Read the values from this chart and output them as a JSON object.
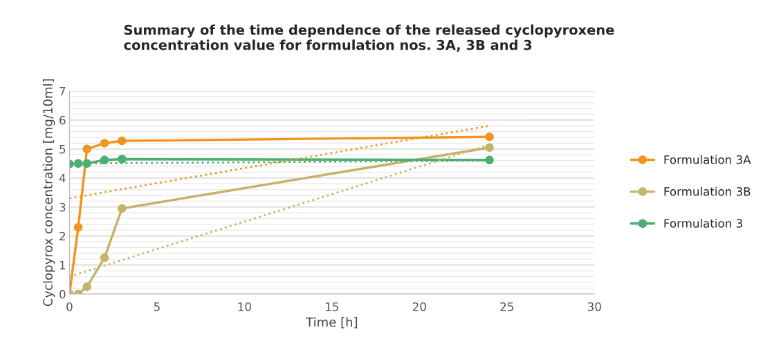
{
  "chart_data": {
    "type": "line",
    "title": "Summary of the time dependence of the released cyclopyroxene\nconcentration value for formulation nos. 3A, 3B and 3",
    "xlabel": "Time [h]",
    "ylabel": "Cyclopyrox concentration [mg/10ml]",
    "xlim": [
      0,
      30
    ],
    "xticks": [
      0,
      5,
      10,
      15,
      20,
      25,
      30
    ],
    "ylim": [
      0,
      7
    ],
    "yticks": [
      0,
      {
        "value": 0.2,
        "label": null
      },
      {
        "value": 0.4,
        "label": null
      },
      {
        "value": 0.6,
        "label": null
      },
      {
        "value": 0.8,
        "label": null
      },
      1,
      {
        "value": 1.2,
        "label": null
      },
      {
        "value": 1.4,
        "label": null
      },
      {
        "value": 1.6,
        "label": null
      },
      {
        "value": 1.8,
        "label": null
      },
      2,
      {
        "value": 2.2,
        "label": null
      },
      {
        "value": 2.4,
        "label": null
      },
      {
        "value": 2.6,
        "label": null
      },
      {
        "value": 2.8,
        "label": null
      },
      3,
      {
        "value": 3.2,
        "label": null
      },
      {
        "value": 3.4,
        "label": null
      },
      {
        "value": 3.6,
        "label": null
      },
      {
        "value": 3.8,
        "label": null
      },
      4,
      {
        "value": 4.2,
        "label": null
      },
      {
        "value": 4.4,
        "label": null
      },
      {
        "value": 4.6,
        "label": null
      },
      {
        "value": 4.8,
        "label": null
      },
      5,
      {
        "value": 5.2,
        "label": null
      },
      {
        "value": 5.4,
        "label": null
      },
      {
        "value": 5.6,
        "label": null
      },
      {
        "value": 5.8,
        "label": null
      },
      6,
      {
        "value": 6.2,
        "label": null
      },
      {
        "value": 6.4,
        "label": null
      },
      {
        "value": 6.6,
        "label": null
      },
      {
        "value": 6.8,
        "label": null
      },
      7
    ],
    "grid": "y",
    "legend": "right",
    "series": [
      {
        "name": "Formulation 3A",
        "color": "#f0961e",
        "x": [
          0,
          0.5,
          1,
          2,
          3,
          24
        ],
        "values": [
          0,
          2.3,
          5.0,
          5.2,
          5.28,
          5.42
        ],
        "marker": "circle",
        "line_style": "solid"
      },
      {
        "name": "Formulation 3B",
        "color": "#c4b46a",
        "x": [
          0,
          0.5,
          1,
          2,
          3,
          24
        ],
        "values": [
          0,
          0,
          0.25,
          1.25,
          2.95,
          5.05
        ],
        "marker": "circle",
        "line_style": "solid"
      },
      {
        "name": "Formulation 3",
        "color": "#4caf72",
        "x": [
          0,
          0.5,
          1,
          2,
          3,
          24
        ],
        "values": [
          4.48,
          4.5,
          4.5,
          4.62,
          4.65,
          4.62
        ],
        "marker": "circle",
        "line_style": "solid"
      },
      {
        "color": "#f0961e",
        "x": [
          0,
          24
        ],
        "values": [
          3.3,
          5.8
        ],
        "marker": "none",
        "line_style": "dotted"
      },
      {
        "color": "#c4b46a",
        "x": [
          0,
          24
        ],
        "values": [
          0.6,
          5.15
        ],
        "marker": "none",
        "line_style": "dotted"
      },
      {
        "color": "#4caf72",
        "x": [
          0,
          24
        ],
        "values": [
          4.5,
          4.6
        ],
        "marker": "none",
        "line_style": "dotted"
      }
    ]
  }
}
